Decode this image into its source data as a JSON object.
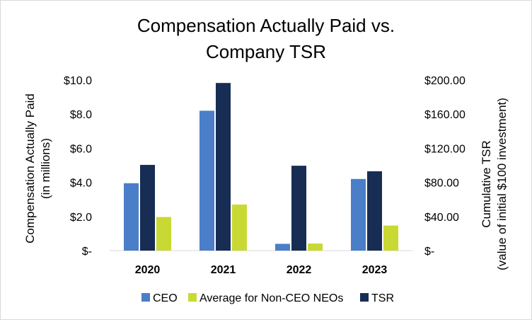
{
  "chart_data": {
    "type": "bar",
    "title_lines": [
      "Compensation Actually Paid vs.",
      "Company TSR"
    ],
    "categories": [
      "2020",
      "2021",
      "2022",
      "2023"
    ],
    "series": [
      {
        "name": "CEO",
        "axis": "left",
        "color": "#4a7ec8",
        "values": [
          3.95,
          8.2,
          0.4,
          4.2
        ]
      },
      {
        "name": "TSR",
        "axis": "right",
        "color": "#172d54",
        "values": [
          100.5,
          196.5,
          99.5,
          93.0
        ]
      },
      {
        "name": "Average for Non-CEO NEOs",
        "axis": "left",
        "color": "#c9d934",
        "values": [
          1.97,
          2.7,
          0.42,
          1.47
        ]
      }
    ],
    "legend_order": [
      "CEO",
      "Average for Non-CEO NEOs",
      "TSR"
    ],
    "left_axis": {
      "label_lines": [
        "Compensation Actually Paid",
        "(in millions)"
      ],
      "ylim": [
        0,
        10
      ],
      "ticks": [
        0,
        2,
        4,
        6,
        8,
        10
      ],
      "tick_labels": [
        "$-",
        "$2.0",
        "$4.0",
        "$6.0",
        "$8.0",
        "$10.0"
      ]
    },
    "right_axis": {
      "label_lines": [
        "Cumulative TSR",
        "(value of initial $100 investment)"
      ],
      "ylim": [
        0,
        200
      ],
      "ticks": [
        0,
        40,
        80,
        120,
        160,
        200
      ],
      "tick_labels": [
        "$-",
        "$40.00",
        "$80.00",
        "$120.00",
        "$160.00",
        "$200.00"
      ]
    },
    "grid": false,
    "legend_position": "bottom"
  }
}
